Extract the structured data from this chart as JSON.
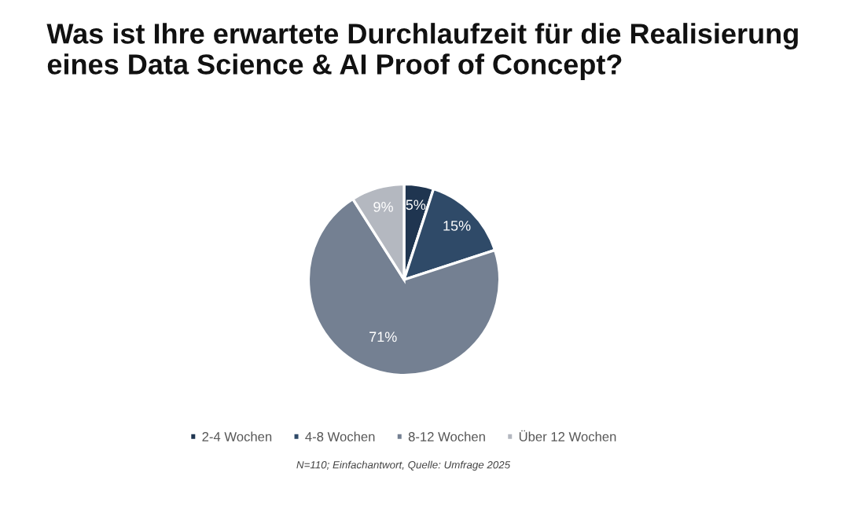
{
  "chart_data": {
    "type": "pie",
    "title": "Was ist Ihre erwartete Durchlaufzeit für die Realisierung\neines Data Science & AI Proof of Concept?",
    "categories": [
      "2-4 Wochen",
      "4-8 Wochen",
      "8-12 Wochen",
      "Über 12 Wochen"
    ],
    "values": [
      5,
      15,
      71,
      9
    ],
    "colors": [
      "#1f3550",
      "#2f4a68",
      "#748092",
      "#b4b8c0"
    ],
    "value_labels": [
      "5%",
      "15%",
      "71%",
      "9%"
    ],
    "legend": "bottom",
    "annotations": [
      "N=110; Einfachantwort, Quelle: Umfrage 2025"
    ]
  }
}
